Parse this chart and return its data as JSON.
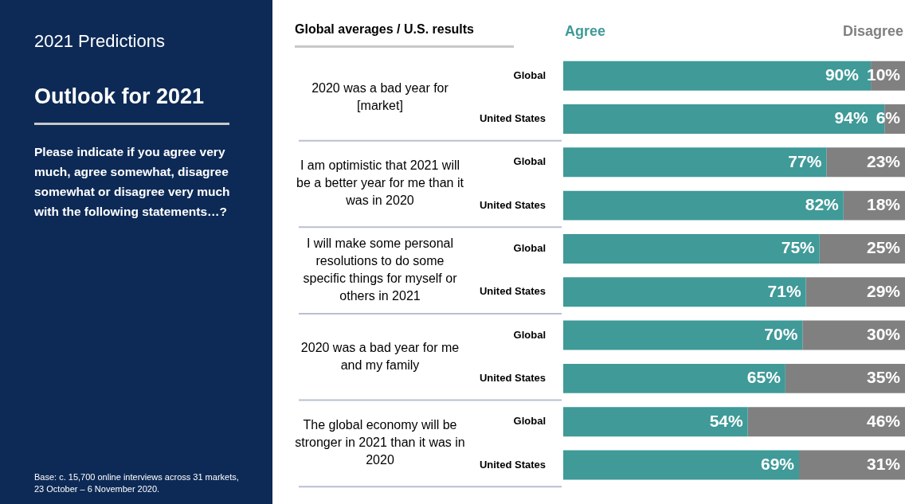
{
  "chart_data": {
    "type": "bar",
    "orientation": "horizontal",
    "stacked": true,
    "title": "2021 Predictions",
    "subtitle": "Outlook for 2021",
    "categories": [
      "Global",
      "United States",
      "Global",
      "United States",
      "Global",
      "United States",
      "Global",
      "United States",
      "Global",
      "United States"
    ],
    "series": [
      {
        "name": "Agree",
        "color": "#3f9a98",
        "values": [
          90,
          94,
          77,
          82,
          75,
          71,
          70,
          65,
          54,
          69
        ],
        "value_labels": [
          "90%",
          "94%",
          "77%",
          "82%",
          "75%",
          "71%",
          "70%",
          "65%",
          "54%",
          "69%"
        ]
      },
      {
        "name": "Disagree",
        "color": "#808080",
        "values": [
          10,
          6,
          23,
          18,
          25,
          29,
          30,
          35,
          46,
          31
        ],
        "value_labels": [
          "10%",
          "6%",
          "23%",
          "18%",
          "25%",
          "29%",
          "30%",
          "35%",
          "46%",
          "31%"
        ]
      }
    ],
    "xlim": [
      0,
      100
    ],
    "tick_labels": "y",
    "grid": false,
    "legend": "top",
    "annotations": [
      "Global averages / U.S. results",
      "Please indicate if you agree very much, agree somewhat, disagree somewhat or disagree very much with the following statements…?",
      "Base: c. 15,700 online interviews across 31 markets,  23 October – 6 November 2020.",
      "2020 was a bad year for [market]",
      "I am optimistic that 2021 will be a better year for me than it was in 2020",
      "I will make some personal resolutions to do some specific things for myself or others in 2021",
      "2020 was a bad year for me and my family",
      "The global economy will be stronger in 2021 than it was in 2020"
    ]
  }
}
